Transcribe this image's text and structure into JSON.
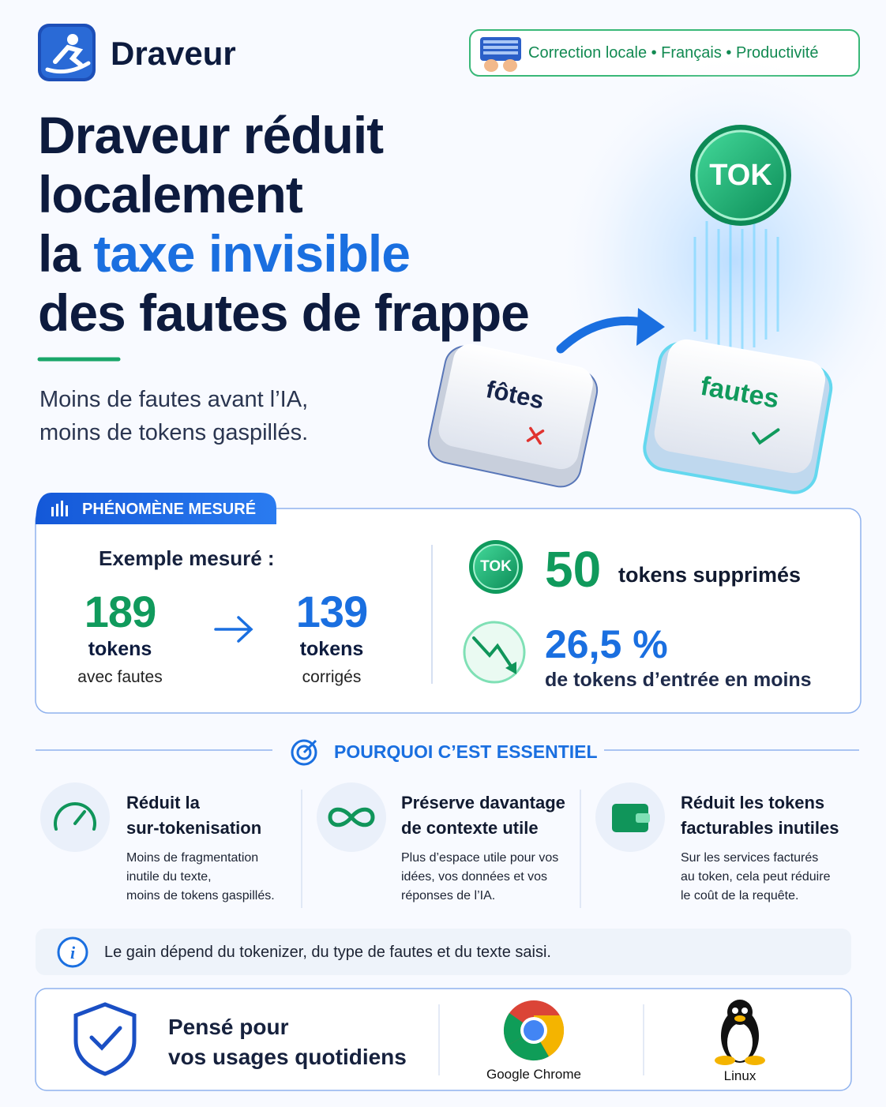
{
  "header": {
    "brand": "Draveur",
    "badge": "Correction locale • Français • Productivité"
  },
  "hero": {
    "title_lines": [
      "Draveur réduit",
      "localement"
    ],
    "title_line3_prefix": "la",
    "title_highlight": "taxe invisible",
    "title_line4": "des fautes de frappe",
    "subtitle_lines": [
      "Moins de fautes avant l’IA,",
      "moins de tokens gaspillés."
    ],
    "coin": "TOK",
    "key_wrong": "fôtes",
    "key_right": "fautes"
  },
  "measured": {
    "tab": "PHÉNOMÈNE MESURÉ",
    "example_label": "Exemple mesuré :",
    "before": {
      "value": 189,
      "unit": "tokens",
      "caption": "avec fautes"
    },
    "after": {
      "value": 139,
      "unit": "tokens",
      "caption": "corrigés"
    },
    "badge": "TOK",
    "removed": {
      "value": 50,
      "label": "tokens supprimés"
    },
    "reduction": {
      "value": "26,5 %",
      "label": "de tokens d’entrée en moins"
    }
  },
  "why": {
    "heading": "POURQUOI C’EST ESSENTIEL",
    "items": [
      {
        "title_lines": [
          "Réduit la",
          "sur-tokenisation"
        ],
        "text_lines": [
          "Moins de fragmentation",
          "inutile du texte,",
          "moins de tokens gaspillés."
        ]
      },
      {
        "title_lines": [
          "Préserve davantage",
          "de contexte utile"
        ],
        "text_lines": [
          "Plus d’espace utile pour vos",
          "idées, vos données et vos",
          "réponses de l’IA."
        ]
      },
      {
        "title_lines": [
          "Réduit les tokens",
          "facturables inutiles"
        ],
        "text_lines": [
          "Sur les services facturés",
          "au token, cela peut réduire",
          "le coût de la requête."
        ]
      }
    ]
  },
  "note": "Le gain dépend du tokenizer, du type de fautes et du texte saisi.",
  "footer": {
    "lines": [
      "Pensé pour",
      "vos usages quotidiens"
    ],
    "platforms": [
      "Google Chrome",
      "Linux"
    ]
  }
}
